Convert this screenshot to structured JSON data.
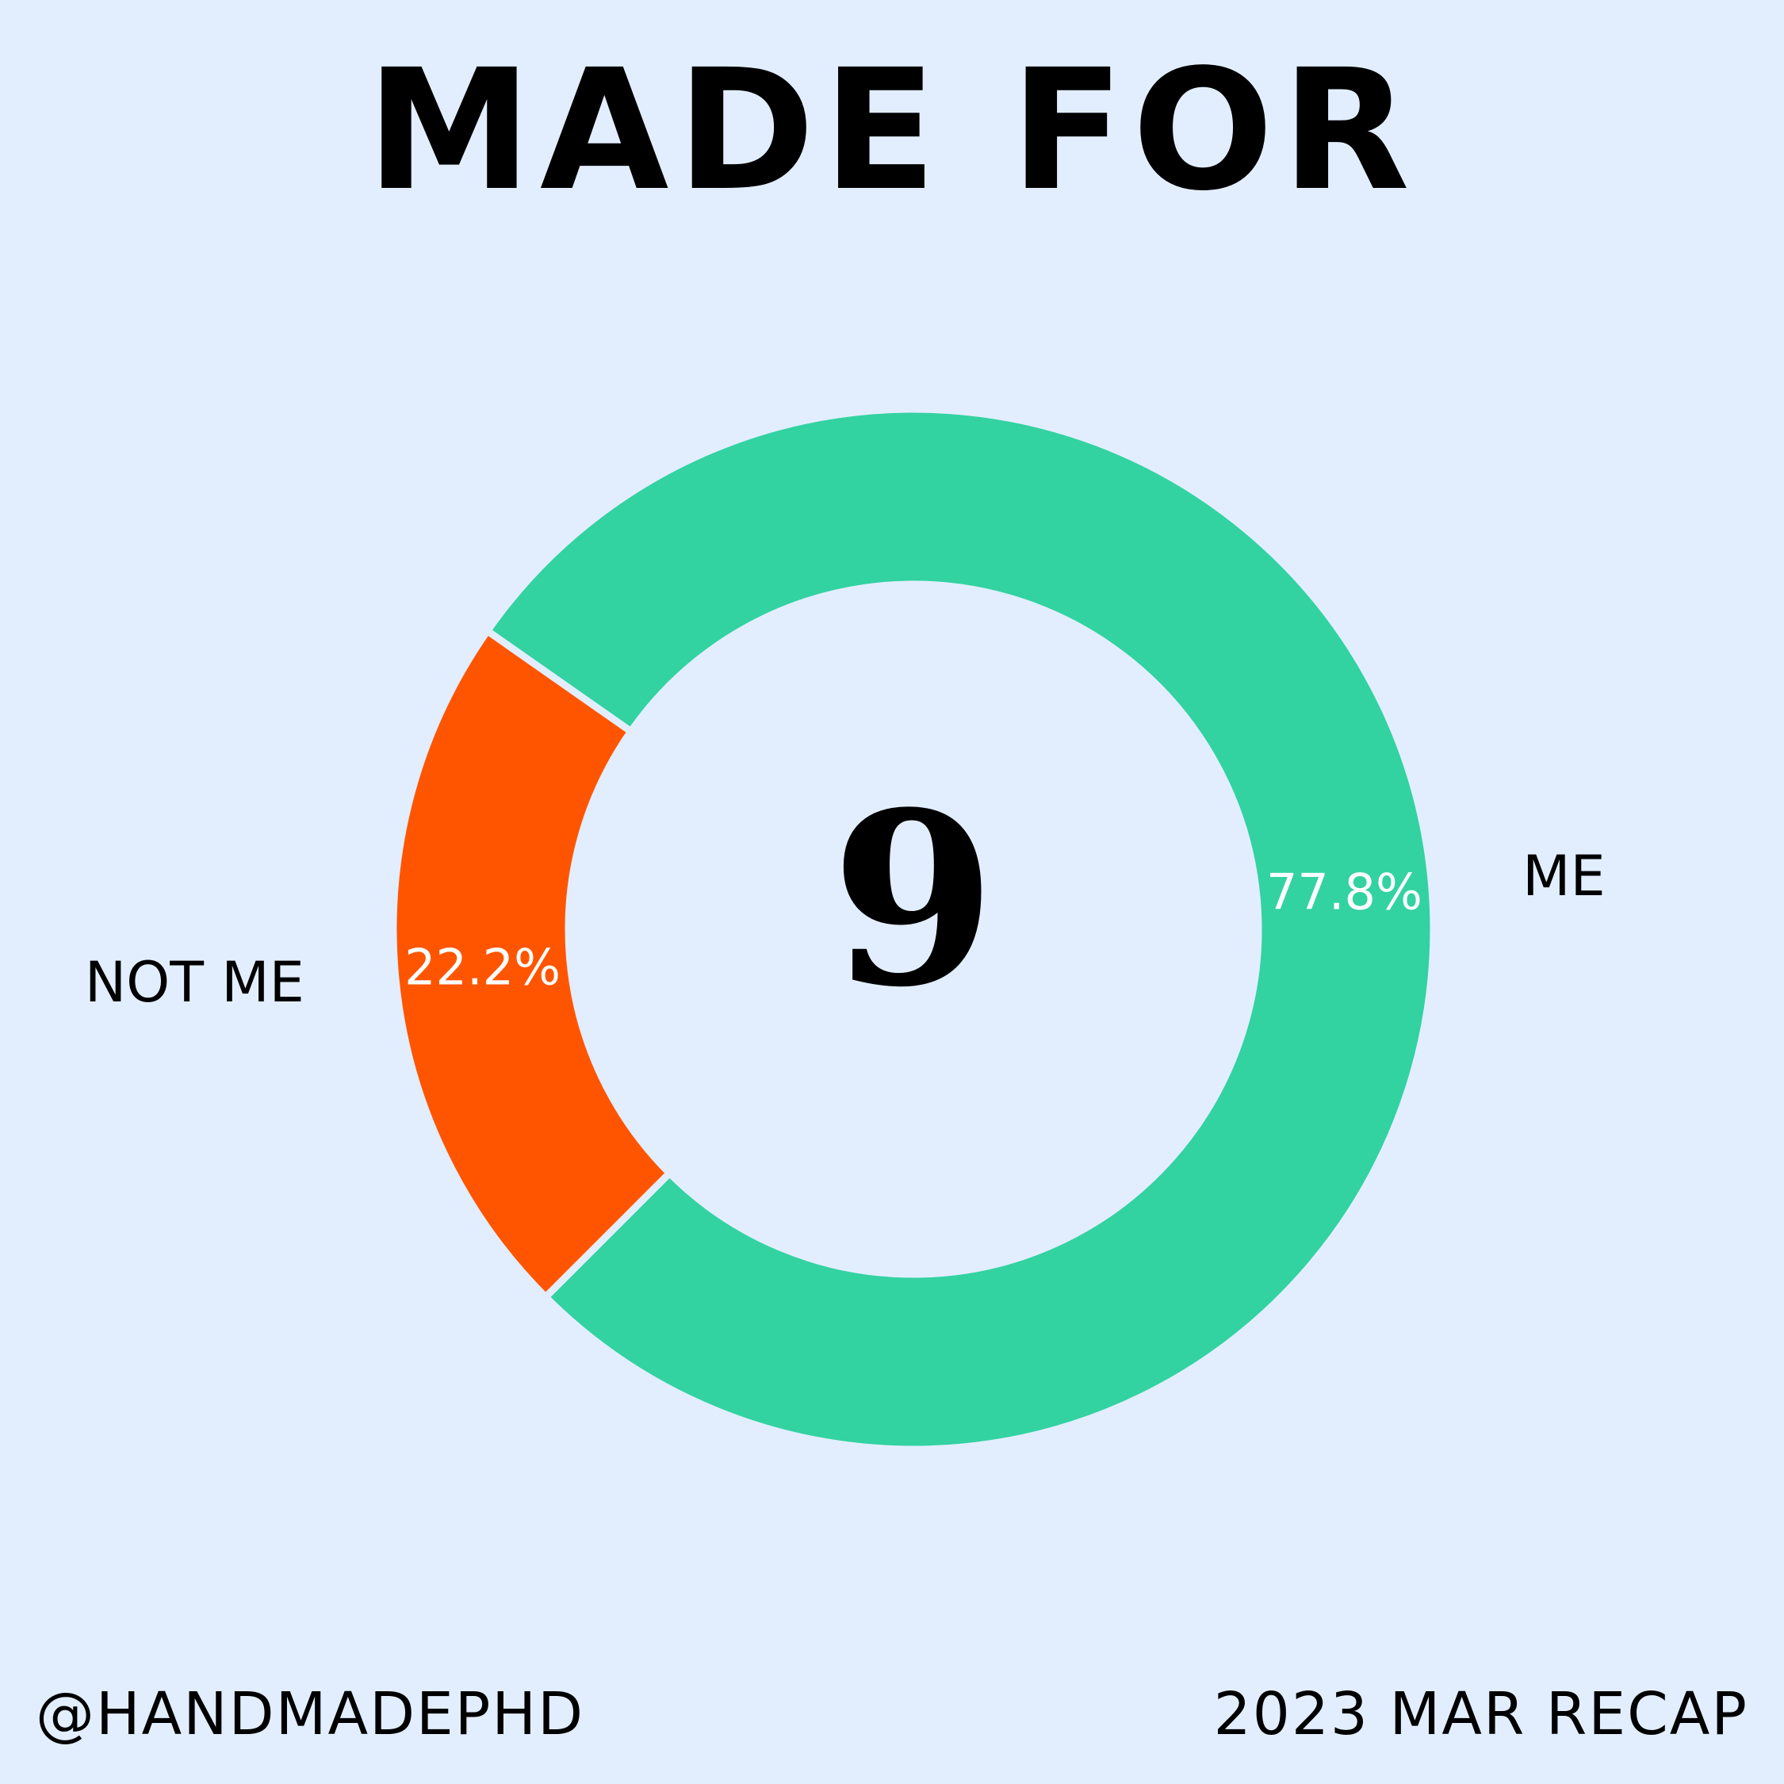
{
  "title": "MADE FOR",
  "center_value": "9",
  "footer": {
    "handle": "@HANDMADEPHD",
    "recap": "2023 MAR RECAP"
  },
  "colors": {
    "background": "#e2eefe",
    "me": "#33d2a1",
    "not_me": "#ff5500"
  },
  "chart_data": {
    "type": "pie",
    "variant": "donut",
    "total": 9,
    "slices": [
      {
        "label": "ME",
        "value": 7,
        "percent_label": "77.8%",
        "color": "#33d2a1"
      },
      {
        "label": "NOT ME",
        "value": 2,
        "percent_label": "22.2%",
        "color": "#ff5500"
      }
    ]
  }
}
